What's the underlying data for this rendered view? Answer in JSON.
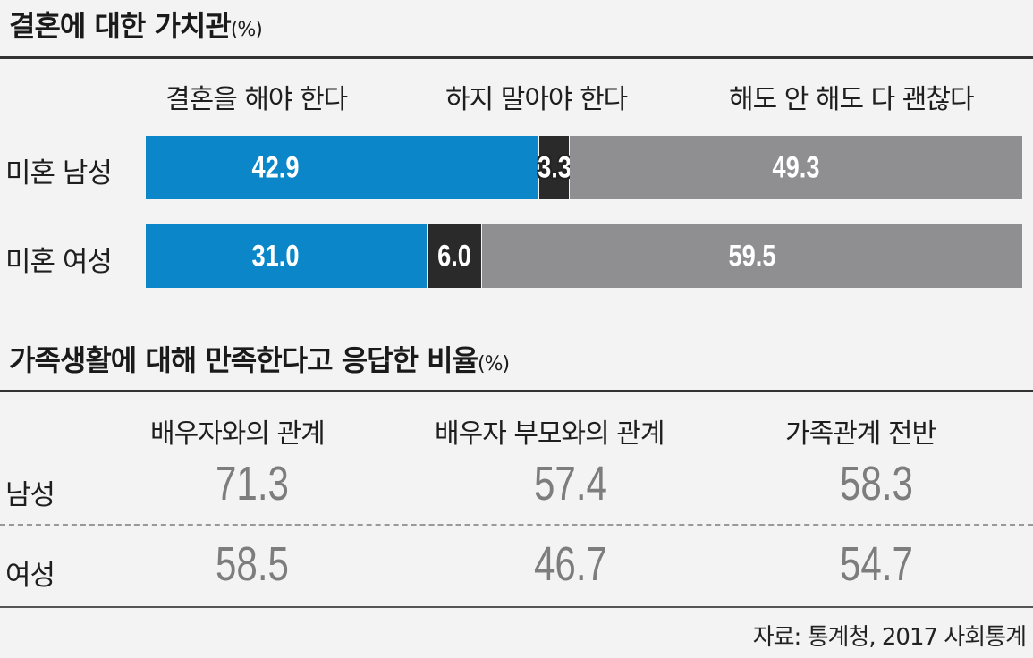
{
  "chart_data": [
    {
      "type": "bar",
      "stacked": true,
      "orientation": "horizontal",
      "title": "결혼에 대한 가치관",
      "unit": "(%)",
      "columns": [
        "결혼을 해야 한다",
        "하지 말아야 한다",
        "해도 안 해도 다 괜찮다"
      ],
      "categories": [
        "미혼 남성",
        "미혼 여성"
      ],
      "series": [
        {
          "name": "결혼을 해야 한다",
          "values": [
            42.9,
            31.0
          ],
          "labels": [
            "42.9",
            "31.0"
          ]
        },
        {
          "name": "하지 말아야 한다",
          "values": [
            3.3,
            6.0
          ],
          "labels": [
            "3.3",
            "6.0"
          ]
        },
        {
          "name": "해도 안 해도 다 괜찮다",
          "values": [
            49.3,
            59.5
          ],
          "labels": [
            "49.3",
            "59.5"
          ]
        }
      ],
      "colors": [
        "#0b87c9",
        "#2a2a2a",
        "#8f8f92"
      ]
    },
    {
      "type": "table",
      "title": "가족생활에 대해 만족한다고 응답한 비율",
      "unit": "(%)",
      "columns": [
        "배우자와의 관계",
        "배우자 부모와의 관계",
        "가족관계 전반"
      ],
      "rows": [
        {
          "label": "남성",
          "values": [
            "71.3",
            "57.4",
            "58.3"
          ]
        },
        {
          "label": "여성",
          "values": [
            "58.5",
            "46.7",
            "54.7"
          ]
        }
      ]
    }
  ],
  "source": "자료: 통계청, 2017 사회통계"
}
